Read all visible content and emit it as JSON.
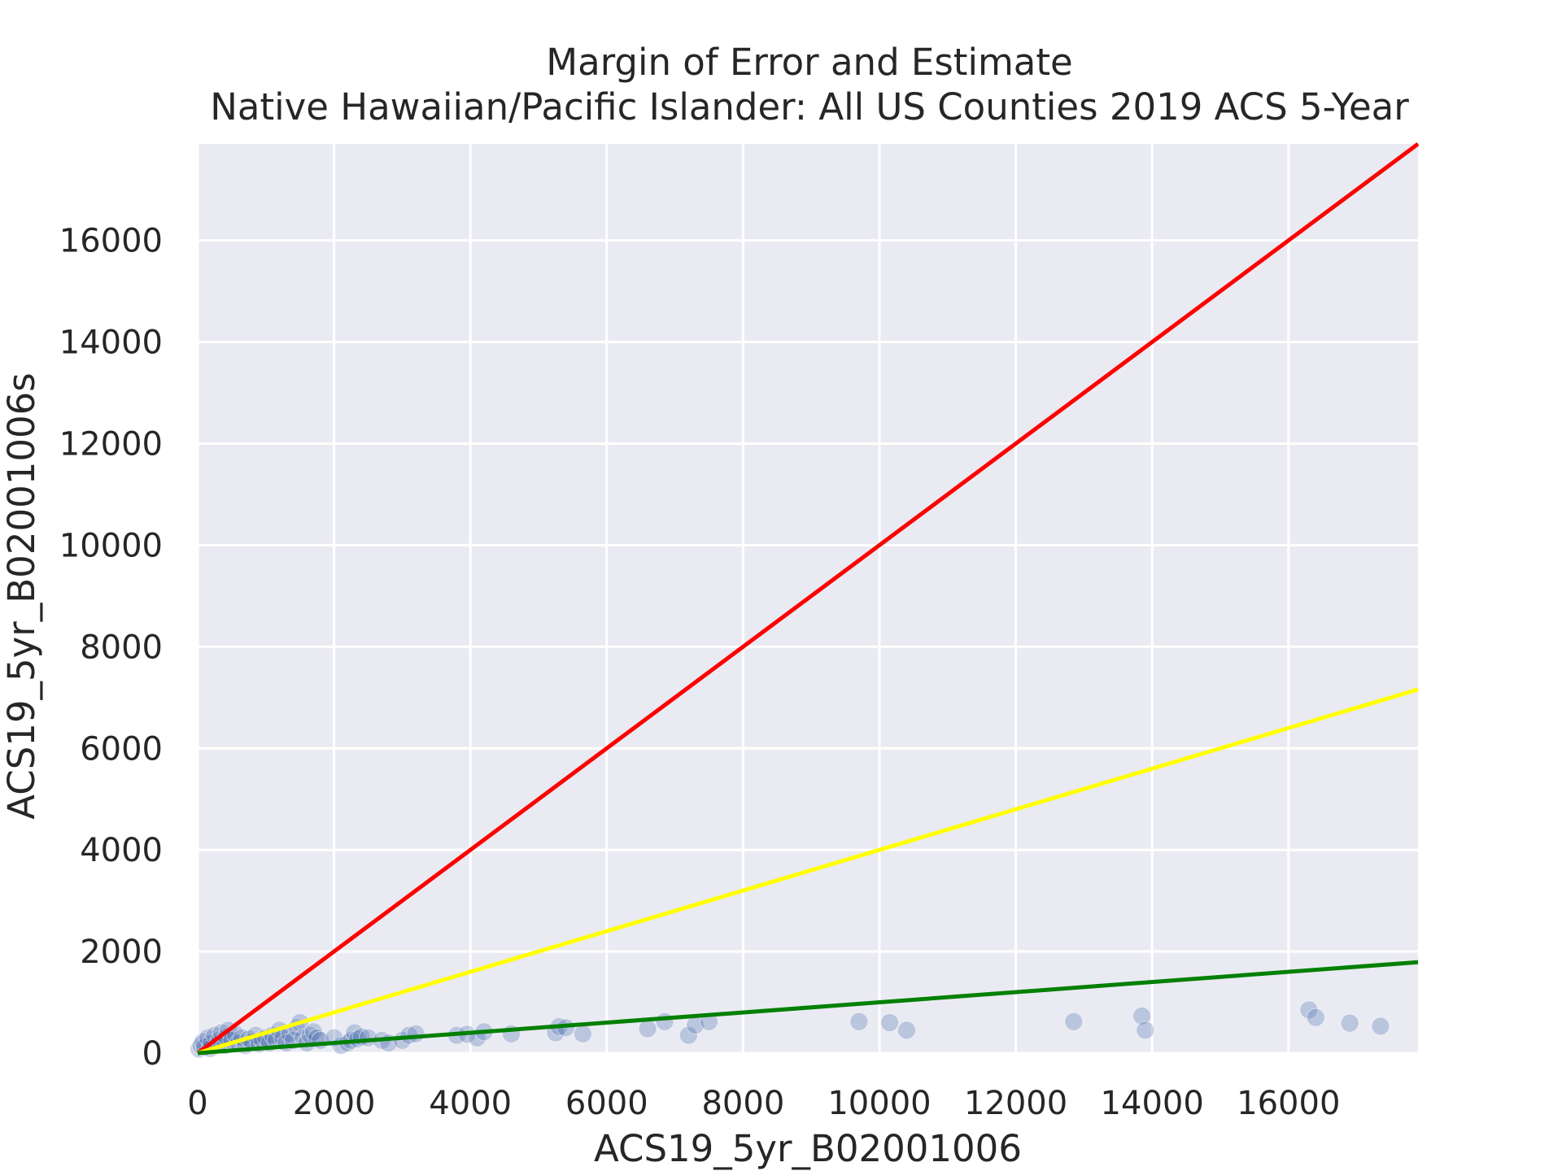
{
  "chart_data": {
    "type": "scatter",
    "title": "Margin of Error and Estimate",
    "subtitle": "Native Hawaiian/Pacific Islander: All US Counties 2019 ACS 5-Year",
    "xlabel": "ACS19_5yr_B02001006",
    "ylabel": "ACS19_5yr_B02001006s",
    "xlim": [
      0,
      17900
    ],
    "ylim": [
      0,
      17900
    ],
    "x_ticks": [
      0,
      2000,
      4000,
      6000,
      8000,
      10000,
      12000,
      14000,
      16000
    ],
    "y_ticks": [
      0,
      2000,
      4000,
      6000,
      8000,
      10000,
      12000,
      14000,
      16000
    ],
    "grid": true,
    "colors": {
      "background": "#eaeaf2",
      "grid": "#ffffff",
      "points": "#4c72b0",
      "red_line": "#ff0000",
      "yellow_line": "#ffff00",
      "green_line": "#008000"
    },
    "reference_lines": [
      {
        "color": "red",
        "slope": 1.0,
        "points": [
          [
            0,
            0
          ],
          [
            17900,
            17900
          ]
        ]
      },
      {
        "color": "yellow",
        "slope": 0.4,
        "points": [
          [
            0,
            0
          ],
          [
            17900,
            7160
          ]
        ]
      },
      {
        "color": "green",
        "slope": 0.1,
        "points": [
          [
            0,
            0
          ],
          [
            17900,
            1790
          ]
        ]
      }
    ],
    "points": [
      [
        20,
        80
      ],
      [
        50,
        150
      ],
      [
        80,
        220
      ],
      [
        100,
        120
      ],
      [
        150,
        300
      ],
      [
        180,
        90
      ],
      [
        200,
        200
      ],
      [
        250,
        350
      ],
      [
        300,
        180
      ],
      [
        320,
        260
      ],
      [
        350,
        400
      ],
      [
        400,
        150
      ],
      [
        420,
        320
      ],
      [
        450,
        450
      ],
      [
        500,
        250
      ],
      [
        550,
        380
      ],
      [
        600,
        200
      ],
      [
        650,
        300
      ],
      [
        700,
        150
      ],
      [
        750,
        280
      ],
      [
        800,
        220
      ],
      [
        850,
        350
      ],
      [
        900,
        180
      ],
      [
        950,
        260
      ],
      [
        1000,
        300
      ],
      [
        1050,
        200
      ],
      [
        1100,
        350
      ],
      [
        1150,
        250
      ],
      [
        1200,
        450
      ],
      [
        1250,
        300
      ],
      [
        1300,
        200
      ],
      [
        1350,
        380
      ],
      [
        1400,
        250
      ],
      [
        1450,
        500
      ],
      [
        1500,
        600
      ],
      [
        1550,
        300
      ],
      [
        1600,
        200
      ],
      [
        1650,
        350
      ],
      [
        1700,
        420
      ],
      [
        1750,
        300
      ],
      [
        1800,
        250
      ],
      [
        2000,
        300
      ],
      [
        2100,
        150
      ],
      [
        2200,
        200
      ],
      [
        2250,
        250
      ],
      [
        2300,
        400
      ],
      [
        2350,
        280
      ],
      [
        2400,
        320
      ],
      [
        2500,
        300
      ],
      [
        2700,
        250
      ],
      [
        2800,
        200
      ],
      [
        3000,
        250
      ],
      [
        3100,
        350
      ],
      [
        3200,
        380
      ],
      [
        3800,
        350
      ],
      [
        3950,
        370
      ],
      [
        4100,
        300
      ],
      [
        4200,
        420
      ],
      [
        4600,
        380
      ],
      [
        5250,
        400
      ],
      [
        5300,
        520
      ],
      [
        5400,
        500
      ],
      [
        5650,
        380
      ],
      [
        6600,
        480
      ],
      [
        6850,
        620
      ],
      [
        7200,
        350
      ],
      [
        7300,
        550
      ],
      [
        7500,
        620
      ],
      [
        9700,
        620
      ],
      [
        10150,
        600
      ],
      [
        10400,
        450
      ],
      [
        12850,
        620
      ],
      [
        13850,
        730
      ],
      [
        13900,
        450
      ],
      [
        16300,
        850
      ],
      [
        16400,
        700
      ],
      [
        16900,
        590
      ],
      [
        17350,
        530
      ]
    ]
  }
}
